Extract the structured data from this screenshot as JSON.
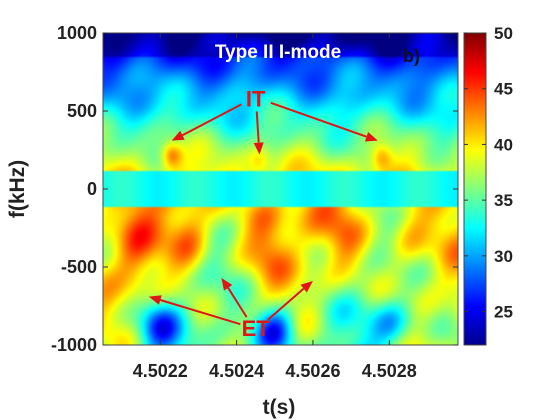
{
  "chart_data": {
    "type": "heatmap",
    "title": "Type II I-mode",
    "panel_label": "b)",
    "xlabel": "t(s)",
    "ylabel": "f(kHz)",
    "xlim": [
      4.50205,
      4.50298
    ],
    "ylim": [
      -1000,
      1000
    ],
    "xticks": [
      4.5022,
      4.5024,
      4.5026,
      4.5028
    ],
    "xtick_labels": [
      "4.5022",
      "4.5024",
      "4.5026",
      "4.5028"
    ],
    "yticks": [
      1000,
      500,
      0,
      -500,
      -1000
    ],
    "ytick_labels": [
      "1000",
      "500",
      "0",
      "-500",
      "-1000"
    ],
    "colorbar": {
      "min": 22,
      "max": 50,
      "ticks": [
        50,
        45,
        40,
        35,
        30,
        25
      ],
      "tick_labels": [
        "50",
        "45",
        "40",
        "35",
        "30",
        "25"
      ]
    },
    "annotations": [
      {
        "text": "IT",
        "x": 4.50245,
        "y": 580,
        "arrows_to": [
          [
            4.50223,
            310
          ],
          [
            4.50246,
            220
          ],
          [
            4.50277,
            310
          ]
        ]
      },
      {
        "text": "ET",
        "x": 4.50245,
        "y": -890,
        "arrows_to": [
          [
            4.50217,
            -690
          ],
          [
            4.50236,
            -570
          ],
          [
            4.5026,
            -590
          ]
        ]
      }
    ],
    "features": {
      "it_blobs": [
        {
          "x": 4.50223,
          "y": 215,
          "level": 45
        },
        {
          "x": 4.50246,
          "y": 180,
          "level": 41
        },
        {
          "x": 4.50278,
          "y": 205,
          "level": 43
        }
      ],
      "et_ridges": [
        {
          "x": 4.50213,
          "y": -450,
          "level": 42
        },
        {
          "x": 4.50228,
          "y": -300,
          "level": 44
        },
        {
          "x": 4.50248,
          "y": -280,
          "level": 42
        },
        {
          "x": 4.50268,
          "y": -380,
          "level": 41
        },
        {
          "x": 4.50285,
          "y": -300,
          "level": 42
        }
      ],
      "et_low_pockets": [
        {
          "x": 4.5022,
          "y": -880,
          "level": 29
        },
        {
          "x": 4.5025,
          "y": -900,
          "level": 24
        },
        {
          "x": 4.50281,
          "y": -870,
          "level": 30
        }
      ],
      "center_band_kHz": [
        -110,
        120
      ],
      "center_band_level": 33
    }
  }
}
